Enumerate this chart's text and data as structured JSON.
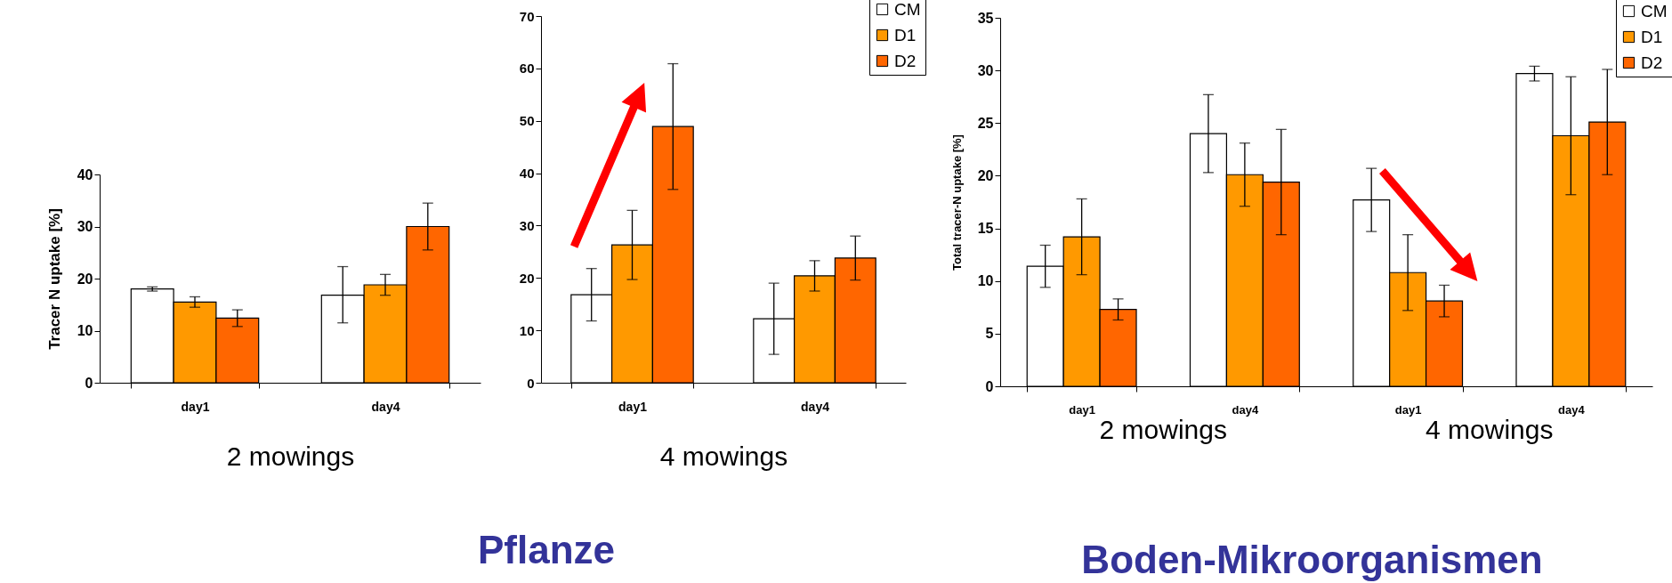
{
  "chart_data": [
    {
      "type": "bar",
      "xlabel": "2 mowings",
      "ylabel": "Tracer N uptake [%]",
      "categories": [
        "day1",
        "day4"
      ],
      "ylim": [
        0,
        40
      ],
      "yticks": [
        0,
        10,
        20,
        30,
        40
      ],
      "series": [
        {
          "color": "#ffffff",
          "values": [
            18.0,
            16.8
          ],
          "errors": [
            0.4,
            [
              11.5,
              22.3
            ]
          ]
        },
        {
          "color": "#ff9900",
          "values": [
            15.5,
            18.8
          ],
          "errors": [
            1.0,
            2.0
          ]
        },
        {
          "color": "#ff6600",
          "values": [
            12.4,
            30.0
          ],
          "errors": [
            1.6,
            4.5
          ]
        }
      ]
    },
    {
      "type": "bar",
      "title": "Pflanze",
      "xlabel": "4 mowings",
      "categories": [
        "day1",
        "day4"
      ],
      "ylim": [
        0,
        70
      ],
      "yticks": [
        0,
        10,
        20,
        30,
        40,
        50,
        60,
        70
      ],
      "legend": "top right",
      "series": [
        {
          "name": "CM",
          "color": "#ffffff",
          "values": [
            16.8,
            12.2
          ],
          "errors": [
            5.0,
            6.8
          ]
        },
        {
          "name": "D1",
          "color": "#ff9900",
          "values": [
            26.3,
            20.4
          ],
          "errors": [
            6.6,
            2.9
          ]
        },
        {
          "name": "D2",
          "color": "#ff6600",
          "values": [
            48.9,
            23.8
          ],
          "errors": [
            12.0,
            4.2
          ]
        }
      ]
    },
    {
      "type": "bar",
      "title": "Boden-Mikroorganismen",
      "ylabel": "Total tracer-N uptake [%]",
      "categories": [
        "day1",
        "day4",
        "day1",
        "day4"
      ],
      "ylim": [
        0,
        35
      ],
      "yticks": [
        0,
        5,
        10,
        15,
        20,
        25,
        30,
        35
      ],
      "legend": "top right",
      "annotations": [
        "2 mowings",
        "4 mowings"
      ],
      "series": [
        {
          "name": "CM",
          "color": "#ffffff",
          "values": [
            11.4,
            24.0,
            17.7,
            29.7
          ],
          "errors": [
            2.0,
            3.7,
            3.0,
            0.7
          ]
        },
        {
          "name": "D1",
          "color": "#ff9900",
          "values": [
            14.2,
            20.1,
            10.8,
            23.8
          ],
          "errors": [
            3.6,
            3.0,
            3.6,
            5.6
          ]
        },
        {
          "name": "D2",
          "color": "#ff6600",
          "values": [
            7.3,
            19.4,
            8.1,
            25.1
          ],
          "errors": [
            1.0,
            5.0,
            1.5,
            5.0
          ]
        }
      ]
    }
  ]
}
